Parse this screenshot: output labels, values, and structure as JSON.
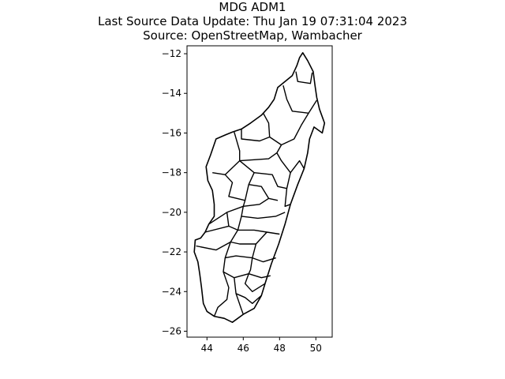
{
  "title": {
    "line1": "MDG ADM1",
    "line2": "Last Source Data Update: Thu Jan 19 07:31:04 2023",
    "line3": "Source: OpenStreetMap, Wambacher"
  },
  "chart_data": {
    "type": "map",
    "xlim": [
      42.9,
      50.9
    ],
    "ylim": [
      -26.3,
      -11.6
    ],
    "xticks": [
      44,
      46,
      48,
      50
    ],
    "yticks": [
      -12,
      -14,
      -16,
      -18,
      -20,
      -22,
      -24,
      -26
    ],
    "xtick_labels": [
      "44",
      "46",
      "48",
      "50"
    ],
    "ytick_labels": [
      "−12",
      "−14",
      "−16",
      "−18",
      "−20",
      "−22",
      "−24",
      "−26"
    ],
    "grid": false,
    "stroke_color": "#000000",
    "outline": [
      [
        49.28,
        -11.95
      ],
      [
        49.55,
        -12.35
      ],
      [
        49.85,
        -12.9
      ],
      [
        49.95,
        -13.6
      ],
      [
        50.05,
        -14.2
      ],
      [
        50.2,
        -14.8
      ],
      [
        50.48,
        -15.5
      ],
      [
        50.35,
        -16.0
      ],
      [
        49.9,
        -15.7
      ],
      [
        49.65,
        -16.3
      ],
      [
        49.55,
        -17.0
      ],
      [
        49.35,
        -17.8
      ],
      [
        49.0,
        -18.6
      ],
      [
        48.6,
        -19.6
      ],
      [
        48.3,
        -20.6
      ],
      [
        47.95,
        -21.6
      ],
      [
        47.55,
        -22.6
      ],
      [
        47.2,
        -23.6
      ],
      [
        47.0,
        -24.2
      ],
      [
        46.6,
        -24.85
      ],
      [
        46.0,
        -25.15
      ],
      [
        45.4,
        -25.55
      ],
      [
        44.95,
        -25.35
      ],
      [
        44.4,
        -25.25
      ],
      [
        44.0,
        -25.0
      ],
      [
        43.8,
        -24.6
      ],
      [
        43.7,
        -23.8
      ],
      [
        43.6,
        -23.1
      ],
      [
        43.5,
        -22.5
      ],
      [
        43.3,
        -22.0
      ],
      [
        43.35,
        -21.4
      ],
      [
        43.65,
        -21.3
      ],
      [
        43.9,
        -21.0
      ],
      [
        44.1,
        -20.6
      ],
      [
        44.4,
        -20.2
      ],
      [
        44.4,
        -19.6
      ],
      [
        44.3,
        -18.9
      ],
      [
        44.05,
        -18.4
      ],
      [
        43.95,
        -17.7
      ],
      [
        44.2,
        -17.1
      ],
      [
        44.5,
        -16.3
      ],
      [
        45.0,
        -16.1
      ],
      [
        45.4,
        -15.95
      ],
      [
        45.9,
        -15.8
      ],
      [
        46.4,
        -15.5
      ],
      [
        47.0,
        -15.1
      ],
      [
        47.4,
        -14.7
      ],
      [
        47.7,
        -14.3
      ],
      [
        47.9,
        -13.7
      ],
      [
        48.3,
        -13.4
      ],
      [
        48.7,
        -13.1
      ],
      [
        48.95,
        -12.6
      ],
      [
        49.1,
        -12.2
      ],
      [
        49.28,
        -11.95
      ]
    ],
    "boundaries": [
      [
        [
          48.9,
          -12.9
        ],
        [
          49.0,
          -13.4
        ],
        [
          49.7,
          -13.5
        ],
        [
          49.8,
          -12.95
        ]
      ],
      [
        [
          48.2,
          -13.6
        ],
        [
          48.4,
          -14.3
        ],
        [
          48.7,
          -14.9
        ],
        [
          49.6,
          -15.0
        ],
        [
          50.05,
          -14.35
        ]
      ],
      [
        [
          47.1,
          -15.0
        ],
        [
          47.4,
          -15.5
        ],
        [
          47.45,
          -16.2
        ],
        [
          48.1,
          -16.6
        ],
        [
          48.8,
          -16.3
        ],
        [
          49.2,
          -15.6
        ],
        [
          49.6,
          -15.0
        ]
      ],
      [
        [
          45.9,
          -15.8
        ],
        [
          45.9,
          -16.3
        ],
        [
          46.9,
          -16.4
        ],
        [
          47.45,
          -16.2
        ]
      ],
      [
        [
          45.5,
          -15.95
        ],
        [
          45.8,
          -16.9
        ],
        [
          45.8,
          -17.4
        ],
        [
          47.4,
          -17.3
        ],
        [
          47.85,
          -17.0
        ],
        [
          48.1,
          -16.6
        ]
      ],
      [
        [
          47.85,
          -17.0
        ],
        [
          48.1,
          -17.4
        ],
        [
          48.6,
          -18.0
        ],
        [
          49.1,
          -17.4
        ],
        [
          49.35,
          -17.8
        ]
      ],
      [
        [
          48.6,
          -18.0
        ],
        [
          48.4,
          -18.8
        ],
        [
          48.3,
          -19.7
        ],
        [
          48.6,
          -19.6
        ]
      ],
      [
        [
          44.3,
          -18.0
        ],
        [
          45.0,
          -18.1
        ],
        [
          45.8,
          -17.4
        ]
      ],
      [
        [
          45.0,
          -18.1
        ],
        [
          45.4,
          -18.5
        ],
        [
          45.2,
          -19.2
        ],
        [
          46.1,
          -19.4
        ],
        [
          46.3,
          -18.6
        ],
        [
          46.6,
          -18.0
        ],
        [
          45.8,
          -17.4
        ]
      ],
      [
        [
          46.6,
          -18.0
        ],
        [
          47.6,
          -18.1
        ],
        [
          47.9,
          -18.7
        ],
        [
          48.4,
          -18.8
        ]
      ],
      [
        [
          46.3,
          -18.6
        ],
        [
          47.0,
          -18.7
        ],
        [
          47.4,
          -19.3
        ],
        [
          47.9,
          -19.4
        ]
      ],
      [
        [
          46.1,
          -19.4
        ],
        [
          46.0,
          -19.7
        ],
        [
          46.9,
          -19.6
        ],
        [
          47.4,
          -19.3
        ]
      ],
      [
        [
          44.1,
          -20.6
        ],
        [
          45.1,
          -20.0
        ],
        [
          46.0,
          -19.7
        ]
      ],
      [
        [
          46.0,
          -19.7
        ],
        [
          45.9,
          -20.2
        ],
        [
          46.8,
          -20.3
        ],
        [
          47.8,
          -20.2
        ],
        [
          48.3,
          -20.0
        ]
      ],
      [
        [
          45.9,
          -20.2
        ],
        [
          45.7,
          -20.9
        ],
        [
          46.6,
          -20.9
        ],
        [
          47.3,
          -21.0
        ],
        [
          48.0,
          -21.1
        ]
      ],
      [
        [
          45.1,
          -20.0
        ],
        [
          45.2,
          -20.7
        ],
        [
          45.7,
          -20.9
        ]
      ],
      [
        [
          43.9,
          -21.0
        ],
        [
          45.2,
          -20.7
        ]
      ],
      [
        [
          45.7,
          -20.9
        ],
        [
          45.3,
          -21.5
        ],
        [
          45.8,
          -21.6
        ],
        [
          46.7,
          -21.6
        ],
        [
          47.3,
          -21.0
        ]
      ],
      [
        [
          43.4,
          -21.7
        ],
        [
          44.5,
          -21.9
        ],
        [
          45.3,
          -21.5
        ]
      ],
      [
        [
          45.3,
          -21.5
        ],
        [
          45.0,
          -22.3
        ],
        [
          45.6,
          -22.2
        ],
        [
          46.5,
          -22.3
        ],
        [
          47.1,
          -22.5
        ],
        [
          47.8,
          -22.3
        ]
      ],
      [
        [
          46.7,
          -21.6
        ],
        [
          46.5,
          -22.3
        ]
      ],
      [
        [
          45.0,
          -22.3
        ],
        [
          44.9,
          -23.0
        ],
        [
          45.5,
          -23.3
        ],
        [
          46.3,
          -23.1
        ],
        [
          47.0,
          -23.3
        ],
        [
          47.5,
          -23.2
        ]
      ],
      [
        [
          46.5,
          -22.3
        ],
        [
          46.4,
          -22.9
        ],
        [
          46.3,
          -23.1
        ]
      ],
      [
        [
          44.9,
          -23.0
        ],
        [
          45.2,
          -23.8
        ],
        [
          45.1,
          -24.4
        ],
        [
          44.6,
          -24.8
        ],
        [
          44.4,
          -25.25
        ]
      ],
      [
        [
          45.5,
          -23.3
        ],
        [
          45.6,
          -24.1
        ],
        [
          46.1,
          -24.3
        ],
        [
          46.5,
          -24.6
        ],
        [
          47.0,
          -24.2
        ]
      ],
      [
        [
          46.3,
          -23.1
        ],
        [
          46.1,
          -23.6
        ],
        [
          46.5,
          -24.0
        ],
        [
          47.2,
          -23.6
        ]
      ],
      [
        [
          45.6,
          -24.1
        ],
        [
          45.9,
          -24.9
        ],
        [
          46.0,
          -25.15
        ]
      ]
    ]
  }
}
